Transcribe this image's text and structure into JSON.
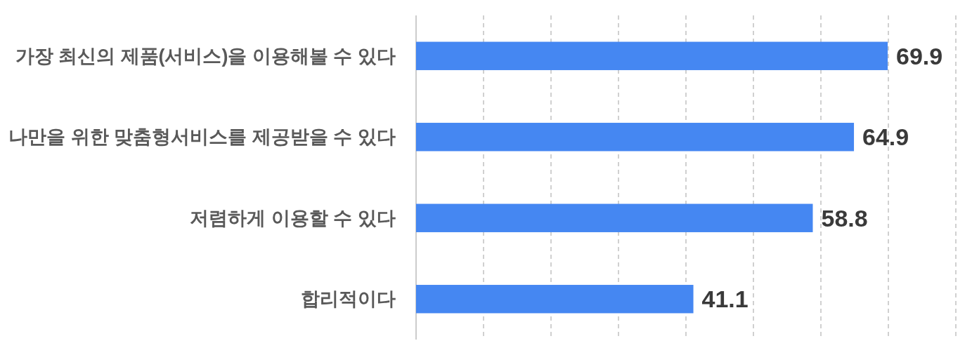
{
  "chart_data": {
    "type": "bar",
    "orientation": "horizontal",
    "categories": [
      "가장 최신의 제품(서비스)을 이용해볼 수 있다",
      "나만을 위한 맞춤형서비스를 제공받을 수 있다",
      "저렴하게 이용할 수 있다",
      "합리적이다"
    ],
    "values": [
      69.9,
      64.9,
      58.8,
      41.1
    ],
    "color": "#4587f2",
    "xlim": [
      0,
      80
    ],
    "xticks": [
      {
        "value": 0,
        "label": null
      },
      {
        "value": 10,
        "label": null
      },
      {
        "value": 20,
        "label": null
      },
      {
        "value": 30,
        "label": null
      },
      {
        "value": 40,
        "label": null
      },
      {
        "value": 50,
        "label": null
      },
      {
        "value": 60,
        "label": null
      },
      {
        "value": 70,
        "label": null
      },
      {
        "value": 80,
        "label": null
      }
    ],
    "grid": "x",
    "data_labels": true,
    "tick_labels": "y"
  }
}
